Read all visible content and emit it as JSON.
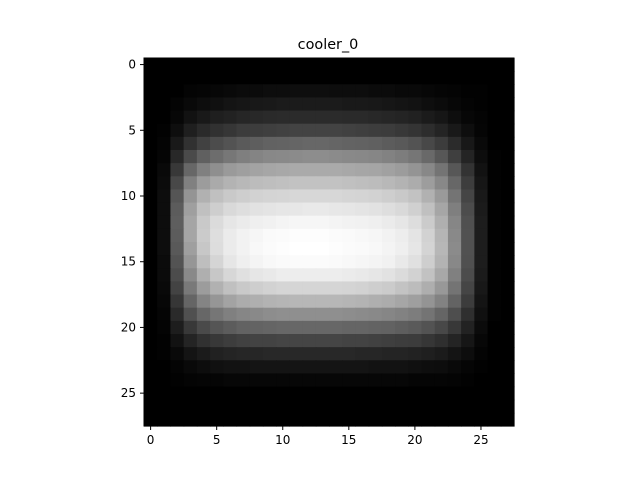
{
  "chart_data": {
    "type": "heatmap",
    "title": "cooler_0",
    "colormap": "gray",
    "rows": 28,
    "cols": 28,
    "xlim": [
      -0.5,
      27.5
    ],
    "ylim": [
      27.5,
      -0.5
    ],
    "x_ticks": [
      0,
      5,
      10,
      15,
      20,
      25
    ],
    "y_ticks": [
      0,
      5,
      10,
      15,
      20,
      25
    ],
    "x_tick_labels": [
      "0",
      "5",
      "10",
      "15",
      "20",
      "25"
    ],
    "y_tick_labels": [
      "0",
      "5",
      "10",
      "15",
      "20",
      "25"
    ],
    "values": [
      [
        0,
        0,
        0,
        0,
        0,
        0,
        0,
        0,
        0,
        0,
        0,
        0,
        0,
        0,
        0,
        0,
        0,
        0,
        0,
        0,
        0,
        0,
        0,
        0,
        0,
        0,
        0,
        0
      ],
      [
        0,
        0,
        0,
        0,
        0,
        0,
        0,
        0,
        0,
        0,
        0,
        0,
        0,
        0,
        0,
        0,
        0,
        0,
        0,
        0,
        0,
        0,
        0,
        0,
        0,
        0,
        0,
        0
      ],
      [
        0,
        0,
        0,
        2,
        3,
        4,
        5,
        6,
        6,
        7,
        7,
        8,
        8,
        8,
        7,
        7,
        7,
        6,
        6,
        5,
        5,
        4,
        3,
        2,
        1,
        1,
        0,
        0
      ],
      [
        0,
        0,
        2,
        5,
        7,
        9,
        11,
        12,
        13,
        14,
        15,
        15,
        15,
        15,
        15,
        14,
        14,
        13,
        12,
        11,
        10,
        8,
        6,
        4,
        2,
        1,
        0,
        0
      ],
      [
        0,
        0,
        4,
        10,
        14,
        17,
        19,
        21,
        22,
        23,
        24,
        24,
        24,
        24,
        24,
        23,
        23,
        22,
        21,
        20,
        18,
        15,
        12,
        8,
        4,
        2,
        0,
        0
      ],
      [
        0,
        1,
        8,
        17,
        23,
        27,
        30,
        33,
        34,
        35,
        36,
        37,
        37,
        37,
        37,
        36,
        35,
        34,
        33,
        31,
        29,
        25,
        20,
        14,
        8,
        3,
        0,
        0
      ],
      [
        0,
        2,
        14,
        27,
        36,
        42,
        46,
        50,
        52,
        54,
        55,
        56,
        57,
        57,
        56,
        55,
        54,
        53,
        51,
        49,
        46,
        40,
        33,
        24,
        13,
        5,
        0,
        0
      ],
      [
        0,
        3,
        22,
        41,
        53,
        60,
        66,
        70,
        73,
        75,
        76,
        77,
        78,
        78,
        77,
        76,
        75,
        74,
        72,
        69,
        65,
        58,
        48,
        35,
        20,
        7,
        1,
        0
      ],
      [
        0,
        5,
        31,
        57,
        71,
        79,
        85,
        88,
        90,
        92,
        93,
        94,
        94,
        94,
        94,
        93,
        92,
        91,
        89,
        86,
        82,
        75,
        64,
        48,
        28,
        10,
        1,
        0
      ],
      [
        0,
        6,
        40,
        71,
        86,
        94,
        99,
        102,
        104,
        105,
        106,
        107,
        107,
        107,
        107,
        106,
        105,
        104,
        102,
        99,
        95,
        87,
        75,
        57,
        34,
        12,
        1,
        0
      ],
      [
        0,
        7,
        47,
        82,
        98,
        106,
        111,
        114,
        116,
        117,
        118,
        119,
        119,
        119,
        119,
        118,
        117,
        116,
        114,
        111,
        107,
        98,
        85,
        64,
        38,
        14,
        1,
        0
      ],
      [
        0,
        7,
        51,
        88,
        106,
        114,
        120,
        123,
        125,
        126,
        127,
        128,
        129,
        129,
        128,
        127,
        126,
        125,
        123,
        120,
        115,
        106,
        92,
        70,
        42,
        15,
        1,
        0
      ],
      [
        0,
        7,
        52,
        91,
        111,
        121,
        127,
        130,
        132,
        133,
        135,
        136,
        136,
        136,
        135,
        134,
        133,
        132,
        130,
        127,
        122,
        112,
        97,
        74,
        44,
        16,
        1,
        0
      ],
      [
        0,
        7,
        51,
        91,
        112,
        123,
        130,
        134,
        136,
        138,
        139,
        140,
        140,
        140,
        139,
        138,
        137,
        136,
        134,
        131,
        126,
        116,
        100,
        76,
        45,
        16,
        1,
        0
      ],
      [
        0,
        7,
        49,
        88,
        110,
        122,
        130,
        134,
        137,
        139,
        140,
        141,
        141,
        141,
        140,
        139,
        138,
        137,
        135,
        132,
        127,
        117,
        101,
        77,
        45,
        16,
        1,
        0
      ],
      [
        0,
        6,
        46,
        83,
        105,
        118,
        127,
        132,
        135,
        137,
        138,
        139,
        139,
        139,
        138,
        137,
        136,
        135,
        133,
        129,
        124,
        114,
        99,
        75,
        44,
        16,
        1,
        0
      ],
      [
        0,
        6,
        42,
        76,
        97,
        110,
        119,
        124,
        127,
        129,
        131,
        131,
        131,
        131,
        131,
        130,
        129,
        127,
        125,
        121,
        116,
        107,
        93,
        71,
        42,
        15,
        1,
        0
      ],
      [
        0,
        5,
        37,
        67,
        86,
        98,
        106,
        111,
        114,
        116,
        118,
        118,
        118,
        118,
        118,
        117,
        116,
        114,
        112,
        108,
        104,
        96,
        84,
        64,
        38,
        13,
        1,
        0
      ],
      [
        0,
        4,
        30,
        56,
        73,
        83,
        90,
        95,
        97,
        99,
        100,
        101,
        101,
        101,
        101,
        100,
        99,
        97,
        95,
        92,
        88,
        82,
        72,
        55,
        33,
        11,
        1,
        0
      ],
      [
        0,
        3,
        23,
        44,
        57,
        65,
        71,
        74,
        76,
        78,
        79,
        79,
        79,
        79,
        79,
        78,
        77,
        76,
        74,
        72,
        69,
        64,
        56,
        43,
        26,
        9,
        1,
        0
      ],
      [
        0,
        2,
        16,
        31,
        41,
        47,
        51,
        54,
        55,
        56,
        57,
        57,
        57,
        57,
        57,
        56,
        56,
        55,
        54,
        52,
        50,
        46,
        40,
        31,
        19,
        6,
        0,
        0
      ],
      [
        0,
        1,
        10,
        20,
        27,
        31,
        34,
        36,
        37,
        37,
        38,
        38,
        38,
        38,
        38,
        37,
        37,
        36,
        35,
        34,
        33,
        30,
        26,
        20,
        12,
        4,
        0,
        0
      ],
      [
        0,
        1,
        5,
        11,
        15,
        18,
        20,
        21,
        21,
        22,
        22,
        22,
        22,
        22,
        22,
        22,
        21,
        21,
        20,
        20,
        19,
        17,
        15,
        11,
        7,
        2,
        0,
        0
      ],
      [
        0,
        0,
        2,
        5,
        7,
        9,
        10,
        10,
        11,
        11,
        11,
        11,
        11,
        11,
        11,
        11,
        11,
        10,
        10,
        10,
        9,
        8,
        7,
        5,
        3,
        1,
        0,
        0
      ],
      [
        0,
        0,
        1,
        2,
        3,
        3,
        4,
        4,
        4,
        4,
        4,
        4,
        4,
        4,
        4,
        4,
        4,
        4,
        4,
        4,
        3,
        3,
        3,
        2,
        1,
        0,
        0,
        0
      ],
      [
        0,
        0,
        0,
        0,
        0,
        0,
        0,
        0,
        0,
        0,
        0,
        0,
        0,
        0,
        0,
        0,
        0,
        0,
        0,
        0,
        0,
        0,
        0,
        0,
        0,
        0,
        0,
        0
      ],
      [
        0,
        0,
        0,
        0,
        0,
        0,
        0,
        0,
        0,
        0,
        0,
        0,
        0,
        0,
        0,
        0,
        0,
        0,
        0,
        0,
        0,
        0,
        0,
        0,
        0,
        0,
        0,
        0
      ],
      [
        0,
        0,
        0,
        0,
        0,
        0,
        0,
        0,
        0,
        0,
        0,
        0,
        0,
        0,
        0,
        0,
        0,
        0,
        0,
        0,
        0,
        0,
        0,
        0,
        0,
        0,
        0,
        0
      ]
    ]
  }
}
